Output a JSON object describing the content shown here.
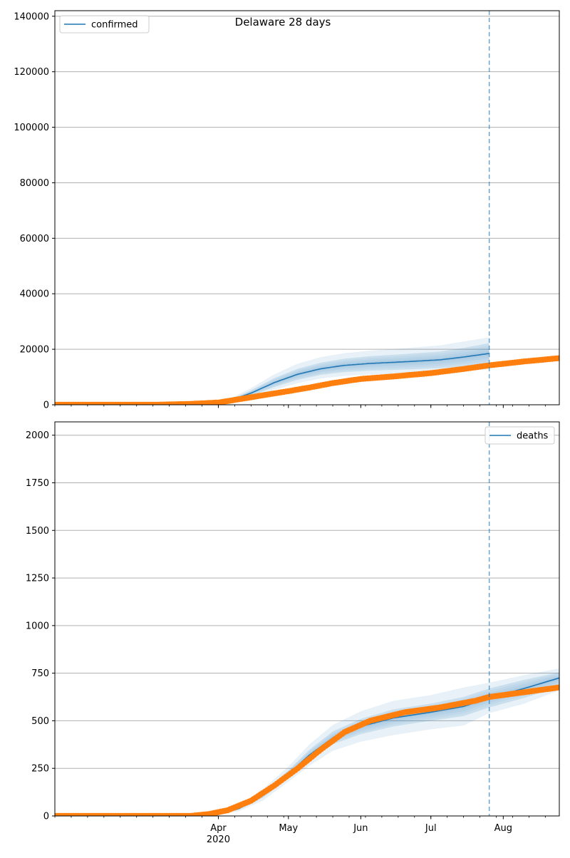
{
  "figure": {
    "title": "Delaware 28 days"
  },
  "chart_data": [
    {
      "type": "line",
      "title": "Delaware 28 days",
      "ylim": [
        0,
        142000
      ],
      "yticks": [
        0,
        20000,
        40000,
        60000,
        80000,
        100000,
        120000,
        140000
      ],
      "ytick_labels": [
        "0",
        "20000",
        "40000",
        "60000",
        "80000",
        "100000",
        "120000",
        "140000"
      ],
      "grid": "horizontal",
      "legend": {
        "position": "top-left",
        "label": "confirmed"
      },
      "forecast_start": "2020-07-26",
      "series": [
        {
          "name": "confirmed",
          "kind": "model-line",
          "color": "#1f77b4",
          "x": [
            "2020-03-28",
            "2020-04-05",
            "2020-04-15",
            "2020-04-25",
            "2020-05-05",
            "2020-05-15",
            "2020-05-25",
            "2020-06-05",
            "2020-06-20",
            "2020-07-05",
            "2020-07-15",
            "2020-07-26"
          ],
          "y": [
            0,
            1200,
            4200,
            8000,
            11000,
            13000,
            14200,
            14900,
            15500,
            16200,
            17200,
            18500
          ],
          "bands": [
            {
              "lower": [
                0,
                900,
                3200,
                6400,
                9000,
                10800,
                11800,
                12300,
                12700,
                13200,
                13900,
                14800
              ],
              "upper": [
                0,
                1500,
                5200,
                9600,
                13000,
                15200,
                16600,
                17500,
                18300,
                19200,
                20500,
                22200
              ]
            },
            {
              "lower": [
                0,
                700,
                2600,
                5400,
                7800,
                9500,
                10400,
                10900,
                11200,
                11600,
                12100,
                12800
              ],
              "upper": [
                0,
                1800,
                6000,
                11000,
                14800,
                17200,
                18600,
                19500,
                20400,
                21400,
                22800,
                24300
              ]
            }
          ]
        },
        {
          "name": "",
          "kind": "observed",
          "color": "#ff7f0e",
          "x": [
            "2020-01-22",
            "2020-03-05",
            "2020-03-20",
            "2020-04-01",
            "2020-04-10",
            "2020-04-20",
            "2020-05-01",
            "2020-05-10",
            "2020-05-20",
            "2020-06-01",
            "2020-06-15",
            "2020-07-01",
            "2020-07-15",
            "2020-07-26",
            "2020-08-10",
            "2020-08-25"
          ],
          "y": [
            0,
            0,
            300,
            800,
            2000,
            3400,
            4900,
            6200,
            7800,
            9300,
            10200,
            11400,
            12900,
            14200,
            15600,
            16800
          ]
        }
      ]
    },
    {
      "type": "line",
      "title": "",
      "ylim": [
        0,
        2070
      ],
      "yticks": [
        0,
        250,
        500,
        750,
        1000,
        1250,
        1500,
        1750,
        2000
      ],
      "ytick_labels": [
        "0",
        "250",
        "500",
        "750",
        "1000",
        "1250",
        "1500",
        "1750",
        "2000"
      ],
      "grid": "horizontal",
      "legend": {
        "position": "top-right",
        "label": "deaths"
      },
      "forecast_start": "2020-07-26",
      "series": [
        {
          "name": "deaths",
          "kind": "model-line",
          "color": "#1f77b4",
          "x": [
            "2020-03-30",
            "2020-04-10",
            "2020-04-20",
            "2020-05-01",
            "2020-05-10",
            "2020-05-20",
            "2020-06-01",
            "2020-06-15",
            "2020-07-01",
            "2020-07-15",
            "2020-07-26",
            "2020-08-10",
            "2020-08-25"
          ],
          "y": [
            0,
            40,
            110,
            220,
            320,
            410,
            470,
            515,
            545,
            575,
            620,
            670,
            725
          ],
          "bands": [
            {
              "lower": [
                0,
                33,
                95,
                200,
                292,
                376,
                430,
                470,
                500,
                525,
                570,
                620,
                680
              ],
              "upper": [
                0,
                47,
                125,
                240,
                348,
                444,
                510,
                560,
                590,
                625,
                670,
                715,
                755
              ]
            },
            {
              "lower": [
                0,
                26,
                80,
                180,
                264,
                342,
                390,
                425,
                455,
                475,
                540,
                590,
                660
              ],
              "upper": [
                0,
                54,
                140,
                260,
                376,
                478,
                550,
                605,
                635,
                675,
                700,
                740,
                775
              ]
            }
          ]
        },
        {
          "name": "",
          "kind": "observed",
          "color": "#ff7f0e",
          "x": [
            "2020-01-22",
            "2020-03-20",
            "2020-03-28",
            "2020-04-05",
            "2020-04-15",
            "2020-04-25",
            "2020-05-05",
            "2020-05-15",
            "2020-05-25",
            "2020-06-05",
            "2020-06-20",
            "2020-07-05",
            "2020-07-20",
            "2020-07-26",
            "2020-08-10",
            "2020-08-25"
          ],
          "y": [
            0,
            0,
            10,
            30,
            80,
            160,
            250,
            350,
            440,
            500,
            545,
            570,
            605,
            625,
            650,
            675
          ]
        }
      ]
    }
  ],
  "x_axis": {
    "domain": [
      "2020-01-22",
      "2020-08-25"
    ],
    "major_ticks": [
      "2020-04-01",
      "2020-05-01",
      "2020-06-01",
      "2020-07-01",
      "2020-08-01"
    ],
    "major_labels": [
      "Apr",
      "May",
      "Jun",
      "Jul",
      "Aug"
    ],
    "year_label": "2020"
  }
}
